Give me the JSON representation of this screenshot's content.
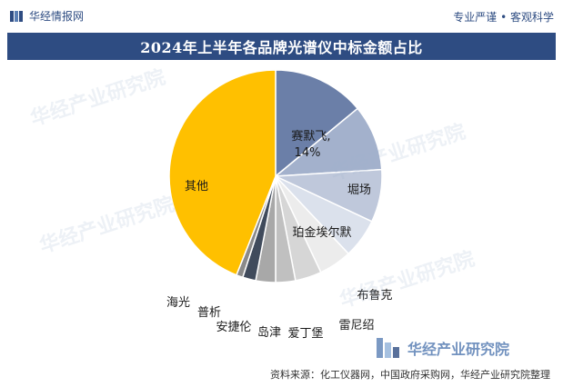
{
  "header": {
    "brand_name": "华经情报网",
    "slogan": "专业严谨 • 客观科学"
  },
  "title": "2024年上半年各品牌光谱仪中标金额占比",
  "watermark_text": "华经产业研究院",
  "corner_logo_text": "华经产业研究院",
  "source_text": "资料来源：化工仪器网，中国政府采购网，华经产业研究院整理",
  "chart_data": {
    "type": "pie",
    "title": "2024年上半年各品牌光谱仪中标金额占比",
    "start_angle_deg": 0,
    "direction": "clockwise",
    "slices": [
      {
        "name": "赛默飞",
        "value": 14,
        "label": "赛默飞,",
        "value_label": "14%",
        "color": "#6b7fa8"
      },
      {
        "name": "堀场",
        "value": 10,
        "label": "堀场",
        "color": "#a3b1cc"
      },
      {
        "name": "珀金埃尔默",
        "value": 8,
        "label": "珀金埃尔默",
        "color": "#bfc8db"
      },
      {
        "name": "布鲁克",
        "value": 6,
        "label": "布鲁克",
        "color": "#dbe1ec"
      },
      {
        "name": "雷尼绍",
        "value": 5,
        "label": "雷尼绍",
        "color": "#ececec"
      },
      {
        "name": "爱丁堡",
        "value": 4,
        "label": "爱丁堡",
        "color": "#d6d6d6"
      },
      {
        "name": "岛津",
        "value": 3,
        "label": "岛津",
        "color": "#c0c0c0"
      },
      {
        "name": "安捷伦",
        "value": 3,
        "label": "安捷伦",
        "color": "#a8a8a8"
      },
      {
        "name": "普析",
        "value": 2,
        "label": "普析",
        "color": "#404b5c"
      },
      {
        "name": "海光",
        "value": 1,
        "label": "海光",
        "color": "#8a8a8a"
      },
      {
        "name": "其他",
        "value": 44,
        "label": "其他",
        "color": "#ffc000"
      }
    ]
  }
}
